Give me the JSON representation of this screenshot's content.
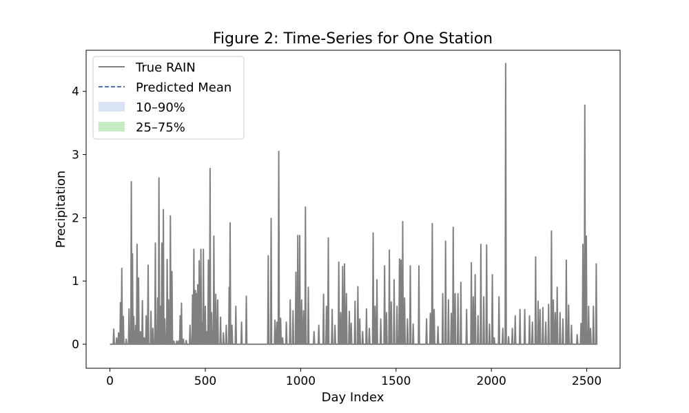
{
  "chart_data": {
    "type": "line",
    "title": "Figure 2: Time-Series for One Station",
    "xlabel": "Day Index",
    "ylabel": "Precipitation",
    "xlim": [
      -125,
      2675
    ],
    "ylim": [
      -0.38,
      4.65
    ],
    "xticks": [
      0,
      500,
      1000,
      1500,
      2000,
      2500
    ],
    "yticks": [
      0,
      1,
      2,
      3,
      4
    ],
    "grid": false,
    "legend": {
      "placement": "top-left",
      "entries": [
        {
          "label": "True RAIN",
          "kind": "line",
          "color": "#808080"
        },
        {
          "label": "Predicted Mean",
          "kind": "dashed",
          "color": "#4c72b0"
        },
        {
          "label": "10–90%",
          "kind": "patch",
          "color": "#dae3f3"
        },
        {
          "label": "25–75%",
          "kind": "patch",
          "color": "#c5ecc2"
        }
      ]
    },
    "series": [
      {
        "name": "True RAIN",
        "color": "#808080",
        "x_start": 0,
        "x_end": 2555,
        "baseline": 0,
        "peaks": [
          [
            20,
            0.24
          ],
          [
            35,
            0.1
          ],
          [
            45,
            0.18
          ],
          [
            55,
            0.66
          ],
          [
            62,
            1.2
          ],
          [
            70,
            0.44
          ],
          [
            85,
            0.08
          ],
          [
            100,
            0.56
          ],
          [
            112,
            2.57
          ],
          [
            118,
            1.43
          ],
          [
            125,
            0.44
          ],
          [
            135,
            0.3
          ],
          [
            142,
            1.58
          ],
          [
            150,
            1.05
          ],
          [
            160,
            0.2
          ],
          [
            170,
            0.69
          ],
          [
            180,
            0.1
          ],
          [
            190,
            0.45
          ],
          [
            200,
            1.25
          ],
          [
            215,
            0.52
          ],
          [
            225,
            0.25
          ],
          [
            238,
            1.6
          ],
          [
            250,
            0.73
          ],
          [
            257,
            2.63
          ],
          [
            265,
            0.6
          ],
          [
            272,
            1.6
          ],
          [
            280,
            2.13
          ],
          [
            288,
            0.4
          ],
          [
            300,
            1.34
          ],
          [
            307,
            0.7
          ],
          [
            317,
            2.03
          ],
          [
            325,
            1.15
          ],
          [
            335,
            0.05
          ],
          [
            350,
            0.05
          ],
          [
            360,
            0.05
          ],
          [
            368,
            0.45
          ],
          [
            375,
            0.65
          ],
          [
            385,
            0.08
          ],
          [
            400,
            0.06
          ],
          [
            420,
            0.3
          ],
          [
            433,
            0.78
          ],
          [
            440,
            1.5
          ],
          [
            448,
            0.85
          ],
          [
            455,
            0.8
          ],
          [
            460,
            0.94
          ],
          [
            468,
            1.32
          ],
          [
            477,
            1.5
          ],
          [
            485,
            0.35
          ],
          [
            490,
            1.5
          ],
          [
            500,
            0.6
          ],
          [
            508,
            0.2
          ],
          [
            516,
            1.33
          ],
          [
            525,
            2.78
          ],
          [
            533,
            0.5
          ],
          [
            545,
            1.71
          ],
          [
            555,
            0.79
          ],
          [
            565,
            0.7
          ],
          [
            580,
            0.43
          ],
          [
            595,
            0.18
          ],
          [
            610,
            0.3
          ],
          [
            625,
            0.9
          ],
          [
            630,
            1.92
          ],
          [
            640,
            0.3
          ],
          [
            660,
            0.6
          ],
          [
            690,
            0.35
          ],
          [
            715,
            0.76
          ],
          [
            830,
            1.4
          ],
          [
            845,
            1.99
          ],
          [
            865,
            0.38
          ],
          [
            875,
            0.35
          ],
          [
            885,
            3.05
          ],
          [
            895,
            0.41
          ],
          [
            905,
            0.1
          ],
          [
            925,
            0.35
          ],
          [
            945,
            0.7
          ],
          [
            960,
            0.53
          ],
          [
            975,
            1.14
          ],
          [
            985,
            1.72
          ],
          [
            995,
            1.72
          ],
          [
            1005,
            0.7
          ],
          [
            1015,
            0.53
          ],
          [
            1025,
            2.17
          ],
          [
            1040,
            0.9
          ],
          [
            1070,
            0.2
          ],
          [
            1095,
            0.3
          ],
          [
            1120,
            0.79
          ],
          [
            1135,
            0.6
          ],
          [
            1145,
            1.68
          ],
          [
            1165,
            0.55
          ],
          [
            1180,
            0.3
          ],
          [
            1200,
            1.3
          ],
          [
            1210,
            0.5
          ],
          [
            1220,
            1.23
          ],
          [
            1230,
            1.27
          ],
          [
            1240,
            0.8
          ],
          [
            1255,
            0.52
          ],
          [
            1265,
            0.33
          ],
          [
            1285,
            0.68
          ],
          [
            1300,
            0.91
          ],
          [
            1310,
            0.4
          ],
          [
            1325,
            0.2
          ],
          [
            1345,
            0.56
          ],
          [
            1360,
            0.25
          ],
          [
            1380,
            1.76
          ],
          [
            1390,
            0.6
          ],
          [
            1400,
            1.02
          ],
          [
            1420,
            0.4
          ],
          [
            1440,
            1.24
          ],
          [
            1450,
            0.5
          ],
          [
            1465,
            1.49
          ],
          [
            1475,
            0.67
          ],
          [
            1490,
            1.02
          ],
          [
            1505,
            0.6
          ],
          [
            1518,
            1.35
          ],
          [
            1526,
            1.33
          ],
          [
            1535,
            1.94
          ],
          [
            1545,
            0.73
          ],
          [
            1560,
            0.4
          ],
          [
            1575,
            1.24
          ],
          [
            1590,
            0.32
          ],
          [
            1620,
            1.24
          ],
          [
            1660,
            0.4
          ],
          [
            1680,
            0.49
          ],
          [
            1690,
            1.91
          ],
          [
            1700,
            0.55
          ],
          [
            1720,
            0.28
          ],
          [
            1745,
            0.8
          ],
          [
            1760,
            1.63
          ],
          [
            1775,
            0.7
          ],
          [
            1790,
            0.49
          ],
          [
            1800,
            1.85
          ],
          [
            1810,
            0.8
          ],
          [
            1825,
            0.8
          ],
          [
            1840,
            0.98
          ],
          [
            1870,
            0.55
          ],
          [
            1895,
            1.29
          ],
          [
            1905,
            0.75
          ],
          [
            1915,
            1.1
          ],
          [
            1930,
            0.45
          ],
          [
            1945,
            1.58
          ],
          [
            1960,
            0.75
          ],
          [
            1975,
            1.57
          ],
          [
            1990,
            0.32
          ],
          [
            2005,
            1.1
          ],
          [
            2015,
            0.1
          ],
          [
            2040,
            0.75
          ],
          [
            2060,
            0.25
          ],
          [
            2075,
            4.44
          ],
          [
            2090,
            0.12
          ],
          [
            2110,
            0.25
          ],
          [
            2125,
            0.45
          ],
          [
            2150,
            0.55
          ],
          [
            2175,
            0.55
          ],
          [
            2200,
            0.45
          ],
          [
            2215,
            0.35
          ],
          [
            2232,
            1.38
          ],
          [
            2245,
            0.68
          ],
          [
            2255,
            0.55
          ],
          [
            2270,
            0.58
          ],
          [
            2285,
            0.35
          ],
          [
            2300,
            0.63
          ],
          [
            2315,
            1.79
          ],
          [
            2325,
            0.7
          ],
          [
            2335,
            0.5
          ],
          [
            2345,
            0.9
          ],
          [
            2360,
            0.5
          ],
          [
            2375,
            0.4
          ],
          [
            2393,
            1.33
          ],
          [
            2405,
            0.62
          ],
          [
            2420,
            0.3
          ],
          [
            2450,
            0.15
          ],
          [
            2470,
            0.33
          ],
          [
            2480,
            1.58
          ],
          [
            2490,
            3.78
          ],
          [
            2498,
            1.71
          ],
          [
            2510,
            0.6
          ],
          [
            2520,
            0.25
          ],
          [
            2535,
            0.6
          ],
          [
            2550,
            1.27
          ]
        ]
      }
    ]
  }
}
